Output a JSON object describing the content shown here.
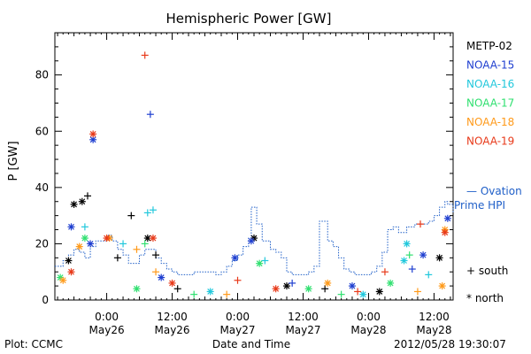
{
  "chart_data": {
    "type": "scatter",
    "title": "Hemispheric Power [GW]",
    "xlabel": "Date and Time",
    "ylabel": "P [GW]",
    "ylim": [
      0,
      95
    ],
    "xlim_hours": [
      -9.5,
      63.5
    ],
    "y_ticks": [
      0,
      20,
      40,
      60,
      80
    ],
    "x_ticks": [
      {
        "hour": 0,
        "line1": "0:00",
        "line2": "May26"
      },
      {
        "hour": 12,
        "line1": "12:00",
        "line2": "May26"
      },
      {
        "hour": 24,
        "line1": "0:00",
        "line2": "May27"
      },
      {
        "hour": 36,
        "line1": "12:00",
        "line2": "May27"
      },
      {
        "hour": 48,
        "line1": "0:00",
        "line2": "May28"
      },
      {
        "hour": 60,
        "line1": "12:00",
        "line2": "May28"
      }
    ],
    "legend": [
      {
        "name": "METP-02",
        "color": "#000000"
      },
      {
        "name": "NOAA-15",
        "color": "#1f3fd0"
      },
      {
        "name": "NOAA-16",
        "color": "#22c8dc"
      },
      {
        "name": "NOAA-17",
        "color": "#30e070"
      },
      {
        "name": "NOAA-18",
        "color": "#ff9a1a"
      },
      {
        "name": "NOAA-19",
        "color": "#e83a1a"
      }
    ],
    "model_label_line1": "— Ovation",
    "model_label_line2": "Prime HPI",
    "model_color": "#1f5fc8",
    "marker_key": [
      {
        "symbol": "+",
        "label": "south"
      },
      {
        "symbol": "*",
        "label": "north"
      }
    ],
    "ovation_steps": [
      [
        -9.5,
        12
      ],
      [
        -8,
        14
      ],
      [
        -7,
        16
      ],
      [
        -6,
        18
      ],
      [
        -5,
        17
      ],
      [
        -4,
        15
      ],
      [
        -3,
        19
      ],
      [
        -2,
        21
      ],
      [
        -1,
        21
      ],
      [
        0,
        23
      ],
      [
        1,
        21
      ],
      [
        2,
        18
      ],
      [
        3,
        16
      ],
      [
        4,
        13
      ],
      [
        5,
        13
      ],
      [
        6,
        16
      ],
      [
        7,
        18
      ],
      [
        8,
        18
      ],
      [
        9,
        15
      ],
      [
        10,
        13
      ],
      [
        11,
        11
      ],
      [
        12,
        10
      ],
      [
        13,
        9
      ],
      [
        14,
        9
      ],
      [
        15,
        9
      ],
      [
        16,
        10
      ],
      [
        17,
        10
      ],
      [
        18,
        10
      ],
      [
        19,
        10
      ],
      [
        20,
        9
      ],
      [
        21,
        10
      ],
      [
        22,
        12
      ],
      [
        23,
        14
      ],
      [
        24,
        16
      ],
      [
        25,
        19
      ],
      [
        26,
        22
      ],
      [
        26.5,
        33
      ],
      [
        27.5,
        27
      ],
      [
        28.5,
        21
      ],
      [
        30,
        18
      ],
      [
        31,
        17
      ],
      [
        32,
        15
      ],
      [
        33,
        10
      ],
      [
        34,
        9
      ],
      [
        35,
        9
      ],
      [
        36,
        9
      ],
      [
        37,
        10
      ],
      [
        38,
        12
      ],
      [
        39,
        28
      ],
      [
        40.5,
        21
      ],
      [
        41.5,
        19
      ],
      [
        42.5,
        15
      ],
      [
        43.5,
        11
      ],
      [
        44.5,
        10
      ],
      [
        45.5,
        9
      ],
      [
        46.5,
        9
      ],
      [
        47.5,
        9
      ],
      [
        48.5,
        10
      ],
      [
        49.5,
        12
      ],
      [
        50.5,
        17
      ],
      [
        51.5,
        25
      ],
      [
        52.5,
        26
      ],
      [
        53.5,
        24
      ],
      [
        55,
        26
      ],
      [
        56.5,
        27
      ],
      [
        58,
        27
      ],
      [
        59,
        28
      ],
      [
        60,
        30
      ],
      [
        61,
        33
      ],
      [
        62,
        35
      ],
      [
        62.5,
        34
      ],
      [
        63.5,
        31
      ]
    ],
    "observations": [
      {
        "sat": "METP-02",
        "h": -6,
        "y": 34,
        "m": "*"
      },
      {
        "sat": "METP-02",
        "h": -4.5,
        "y": 35,
        "m": "*"
      },
      {
        "sat": "METP-02",
        "h": -3.5,
        "y": 37,
        "m": "+"
      },
      {
        "sat": "METP-02",
        "h": 4.5,
        "y": 30,
        "m": "+"
      },
      {
        "sat": "METP-02",
        "h": 7.5,
        "y": 22,
        "m": "*"
      },
      {
        "sat": "METP-02",
        "h": 9,
        "y": 16,
        "m": "+"
      },
      {
        "sat": "METP-02",
        "h": 27,
        "y": 22,
        "m": "*"
      },
      {
        "sat": "METP-02",
        "h": 61,
        "y": 15,
        "m": "*"
      },
      {
        "sat": "METP-02",
        "h": -7,
        "y": 14,
        "m": "*"
      },
      {
        "sat": "METP-02",
        "h": 2,
        "y": 15,
        "m": "+"
      },
      {
        "sat": "METP-02",
        "h": 13,
        "y": 4,
        "m": "+"
      },
      {
        "sat": "METP-02",
        "h": 33,
        "y": 5,
        "m": "*"
      },
      {
        "sat": "METP-02",
        "h": 40,
        "y": 4,
        "m": "+"
      },
      {
        "sat": "METP-02",
        "h": 50,
        "y": 3,
        "m": "*"
      },
      {
        "sat": "NOAA-15",
        "h": -2.5,
        "y": 57,
        "m": "*"
      },
      {
        "sat": "NOAA-15",
        "h": 8,
        "y": 66,
        "m": "+"
      },
      {
        "sat": "NOAA-15",
        "h": -6.5,
        "y": 26,
        "m": "*"
      },
      {
        "sat": "NOAA-15",
        "h": -3,
        "y": 20,
        "m": "*"
      },
      {
        "sat": "NOAA-15",
        "h": 26.5,
        "y": 21,
        "m": "*"
      },
      {
        "sat": "NOAA-15",
        "h": 62.5,
        "y": 29,
        "m": "*"
      },
      {
        "sat": "NOAA-15",
        "h": 58,
        "y": 16,
        "m": "*"
      },
      {
        "sat": "NOAA-15",
        "h": 56,
        "y": 11,
        "m": "+"
      },
      {
        "sat": "NOAA-15",
        "h": 23.5,
        "y": 15,
        "m": "*"
      },
      {
        "sat": "NOAA-15",
        "h": 10,
        "y": 8,
        "m": "*"
      },
      {
        "sat": "NOAA-15",
        "h": 34,
        "y": 6,
        "m": "+"
      },
      {
        "sat": "NOAA-15",
        "h": 45,
        "y": 5,
        "m": "*"
      },
      {
        "sat": "NOAA-16",
        "h": 7.5,
        "y": 31,
        "m": "+"
      },
      {
        "sat": "NOAA-16",
        "h": 8.5,
        "y": 32,
        "m": "+"
      },
      {
        "sat": "NOAA-16",
        "h": -4,
        "y": 26,
        "m": "+"
      },
      {
        "sat": "NOAA-16",
        "h": 55,
        "y": 20,
        "m": "*"
      },
      {
        "sat": "NOAA-16",
        "h": 54.5,
        "y": 14,
        "m": "*"
      },
      {
        "sat": "NOAA-16",
        "h": 3,
        "y": 20,
        "m": "+"
      },
      {
        "sat": "NOAA-16",
        "h": 19,
        "y": 3,
        "m": "*"
      },
      {
        "sat": "NOAA-16",
        "h": 29,
        "y": 14,
        "m": "+"
      },
      {
        "sat": "NOAA-16",
        "h": 47,
        "y": 2,
        "m": "*"
      },
      {
        "sat": "NOAA-16",
        "h": 59,
        "y": 9,
        "m": "+"
      },
      {
        "sat": "NOAA-17",
        "h": -4,
        "y": 22,
        "m": "*"
      },
      {
        "sat": "NOAA-17",
        "h": -8.5,
        "y": 8,
        "m": "*"
      },
      {
        "sat": "NOAA-17",
        "h": 7,
        "y": 20,
        "m": "+"
      },
      {
        "sat": "NOAA-17",
        "h": 28,
        "y": 13,
        "m": "*"
      },
      {
        "sat": "NOAA-17",
        "h": 55.5,
        "y": 16,
        "m": "+"
      },
      {
        "sat": "NOAA-17",
        "h": 5.5,
        "y": 4,
        "m": "*"
      },
      {
        "sat": "NOAA-17",
        "h": 16,
        "y": 2,
        "m": "+"
      },
      {
        "sat": "NOAA-17",
        "h": 37,
        "y": 4,
        "m": "*"
      },
      {
        "sat": "NOAA-17",
        "h": 43,
        "y": 2,
        "m": "+"
      },
      {
        "sat": "NOAA-17",
        "h": 52,
        "y": 6,
        "m": "*"
      },
      {
        "sat": "NOAA-18",
        "h": -5,
        "y": 19,
        "m": "*"
      },
      {
        "sat": "NOAA-18",
        "h": 0.5,
        "y": 22,
        "m": "*"
      },
      {
        "sat": "NOAA-18",
        "h": 5.5,
        "y": 18,
        "m": "+"
      },
      {
        "sat": "NOAA-18",
        "h": 9,
        "y": 10,
        "m": "+"
      },
      {
        "sat": "NOAA-18",
        "h": 62,
        "y": 25,
        "m": "*"
      },
      {
        "sat": "NOAA-18",
        "h": 61.5,
        "y": 5,
        "m": "*"
      },
      {
        "sat": "NOAA-18",
        "h": -8,
        "y": 7,
        "m": "*"
      },
      {
        "sat": "NOAA-18",
        "h": 22,
        "y": 2,
        "m": "+"
      },
      {
        "sat": "NOAA-18",
        "h": 40.5,
        "y": 6,
        "m": "*"
      },
      {
        "sat": "NOAA-18",
        "h": 57,
        "y": 3,
        "m": "+"
      },
      {
        "sat": "NOAA-19",
        "h": -2.5,
        "y": 59,
        "m": "*"
      },
      {
        "sat": "NOAA-19",
        "h": 7,
        "y": 87,
        "m": "+"
      },
      {
        "sat": "NOAA-19",
        "h": -6.5,
        "y": 10,
        "m": "*"
      },
      {
        "sat": "NOAA-19",
        "h": 8.5,
        "y": 22,
        "m": "*"
      },
      {
        "sat": "NOAA-19",
        "h": 57.5,
        "y": 27,
        "m": "+"
      },
      {
        "sat": "NOAA-19",
        "h": 0,
        "y": 22,
        "m": "*"
      },
      {
        "sat": "NOAA-19",
        "h": 24,
        "y": 7,
        "m": "+"
      },
      {
        "sat": "NOAA-19",
        "h": 62,
        "y": 24,
        "m": "*"
      },
      {
        "sat": "NOAA-19",
        "h": 31,
        "y": 4,
        "m": "*"
      },
      {
        "sat": "NOAA-19",
        "h": 51,
        "y": 10,
        "m": "+"
      },
      {
        "sat": "NOAA-19",
        "h": 12,
        "y": 6,
        "m": "*"
      },
      {
        "sat": "NOAA-19",
        "h": 46,
        "y": 3,
        "m": "+"
      }
    ]
  },
  "footer": {
    "plot_credit": "Plot: CCMC",
    "timestamp": "2012/05/28 19:30:07"
  }
}
